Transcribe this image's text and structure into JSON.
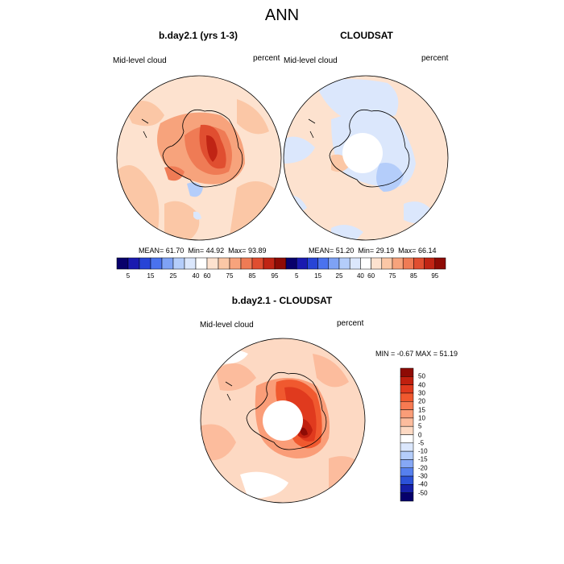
{
  "title": "ANN",
  "panels": [
    {
      "title": "b.day2.1 (yrs 1-3)",
      "variable": "Mid-level cloud",
      "units": "percent",
      "stats": {
        "mean_label": "MEAN=",
        "mean": "61.70",
        "min_label": "Min=",
        "min": "44.92",
        "max_label": "Max=",
        "max": "93.89"
      }
    },
    {
      "title": "CLOUDSAT",
      "variable": "Mid-level cloud",
      "units": "percent",
      "stats": {
        "mean_label": "MEAN=",
        "mean": "51.20",
        "min_label": "Min=",
        "min": "29.19",
        "max_label": "Max=",
        "max": "66.14"
      }
    }
  ],
  "colorbar": {
    "labels": [
      "5",
      "15",
      "25",
      "40",
      "60",
      "75",
      "85",
      "95"
    ],
    "colors": [
      "#08006b",
      "#1a1ab0",
      "#2744d6",
      "#4a72ee",
      "#7ea2f5",
      "#b4cdfa",
      "#dbe7fc",
      "#ffffff",
      "#fde2cf",
      "#fbc7a6",
      "#f7a37c",
      "#ef7b55",
      "#e04e30",
      "#c02414",
      "#8e0b05"
    ]
  },
  "diff": {
    "title": "b.day2.1 - CLOUDSAT",
    "variable": "Mid-level cloud",
    "units": "percent",
    "minmax": "MIN =  -0.67 MAX =  51.19",
    "colorbar": {
      "labels": [
        "50",
        "40",
        "30",
        "20",
        "15",
        "10",
        "5",
        "0",
        "-5",
        "-10",
        "-15",
        "-20",
        "-30",
        "-40",
        "-50"
      ],
      "colors": [
        "#8e0b05",
        "#c0200f",
        "#e03a1e",
        "#f0592f",
        "#f77a52",
        "#fa9d78",
        "#fcbc9d",
        "#fdd9c3",
        "#ffffff",
        "#dbe7fc",
        "#b4cdfa",
        "#86a8f5",
        "#5680ee",
        "#2c52d8",
        "#1620a8",
        "#06006b"
      ]
    }
  }
}
